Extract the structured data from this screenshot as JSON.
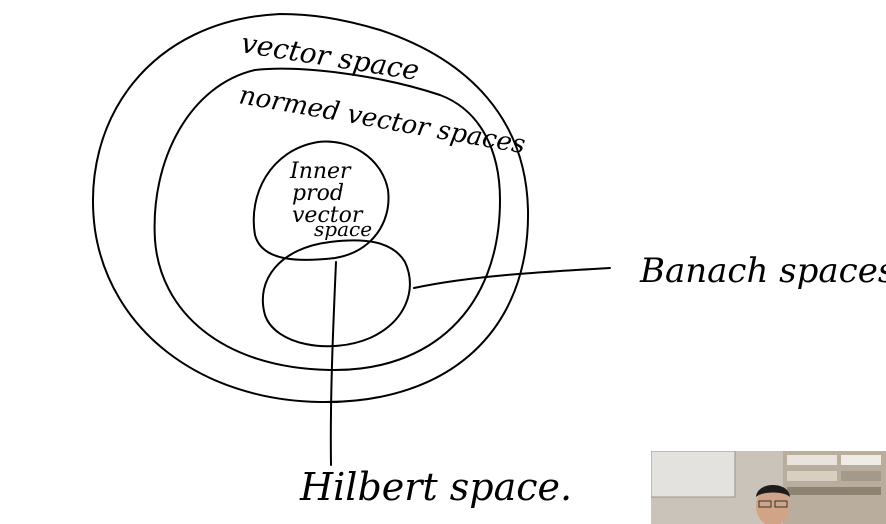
{
  "diagram": {
    "labels": {
      "vector_space": "vector space",
      "normed_vector_spaces": "normed vector spaces",
      "inner_prod_vector_space": [
        "Inner",
        "prod",
        "vector",
        "space"
      ],
      "banach_spaces": "Banach spaces",
      "hilbert_space": "Hilbert space."
    }
  },
  "colors": {
    "ink": "#000000",
    "background": "#ffffff"
  }
}
